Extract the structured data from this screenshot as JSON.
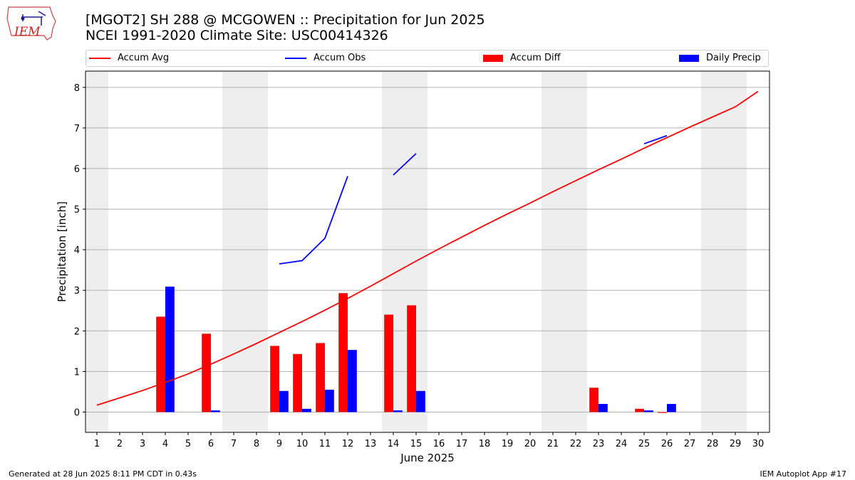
{
  "header": {
    "title_line1": "[MGOT2] SH 288 @ MCGOWEN :: Precipitation for Jun 2025",
    "title_line2": "NCEI 1991-2020 Climate Site: USC00414326"
  },
  "logo": {
    "text": "IEM"
  },
  "legend": {
    "accum_avg": "Accum Avg",
    "accum_obs": "Accum Obs",
    "accum_diff": "Accum Diff",
    "daily_precip": "Daily Precip"
  },
  "footer": {
    "generated": "Generated at 28 Jun 2025 8:11 PM CDT in 0.43s",
    "app": "IEM Autoplot App #17"
  },
  "colors": {
    "accum_avg": "#ff0000",
    "accum_obs": "#0000ff",
    "accum_diff": "#ff0000",
    "daily_precip": "#0000ff",
    "weekend_shade": "#eeeeee",
    "grid": "#b0b0b0"
  },
  "chart_data": {
    "type": "bar",
    "xlabel": "June 2025",
    "ylabel": "Precipitation [inch]",
    "xlim": [
      0.5,
      30.5
    ],
    "ylim": [
      -0.5,
      8.4
    ],
    "yticks": [
      0,
      1,
      2,
      3,
      4,
      5,
      6,
      7,
      8
    ],
    "days": [
      1,
      2,
      3,
      4,
      5,
      6,
      7,
      8,
      9,
      10,
      11,
      12,
      13,
      14,
      15,
      16,
      17,
      18,
      19,
      20,
      21,
      22,
      23,
      24,
      25,
      26,
      27,
      28,
      29,
      30
    ],
    "weekend_days": [
      1,
      7,
      8,
      14,
      15,
      21,
      22,
      28,
      29
    ],
    "grid": "horizontal",
    "series": [
      {
        "name": "Accum Avg",
        "type": "line",
        "values": [
          0.17,
          0.35,
          0.53,
          0.73,
          0.94,
          1.18,
          1.43,
          1.69,
          1.96,
          2.23,
          2.51,
          2.8,
          3.1,
          3.41,
          3.72,
          4.02,
          4.31,
          4.6,
          4.88,
          5.15,
          5.43,
          5.7,
          5.97,
          6.23,
          6.5,
          6.76,
          7.02,
          7.27,
          7.52,
          7.9
        ]
      },
      {
        "name": "Accum Obs",
        "type": "line",
        "segments": [
          [
            [
              9,
              3.65
            ],
            [
              10,
              3.73
            ],
            [
              11,
              4.28
            ],
            [
              12,
              5.81
            ]
          ],
          [
            [
              14,
              5.84
            ],
            [
              15,
              6.37
            ]
          ],
          [
            [
              25,
              6.61
            ],
            [
              26,
              6.81
            ]
          ]
        ]
      },
      {
        "name": "Accum Diff",
        "type": "bar",
        "values": [
          0,
          0,
          0,
          2.35,
          0,
          1.93,
          0,
          0,
          1.63,
          1.43,
          1.7,
          2.93,
          0,
          2.4,
          2.63,
          0,
          0,
          0,
          0,
          0,
          0,
          0,
          0.6,
          0,
          0.08,
          -0.02,
          0,
          0,
          0,
          0
        ]
      },
      {
        "name": "Daily Precip",
        "type": "bar",
        "values": [
          0,
          0,
          0,
          3.09,
          0,
          0.04,
          0,
          0,
          0.52,
          0.08,
          0.55,
          1.53,
          0,
          0.04,
          0.52,
          0,
          0,
          0,
          0,
          0,
          0,
          0,
          0.2,
          0,
          0.04,
          0.2,
          0,
          0,
          0,
          0
        ]
      }
    ]
  }
}
